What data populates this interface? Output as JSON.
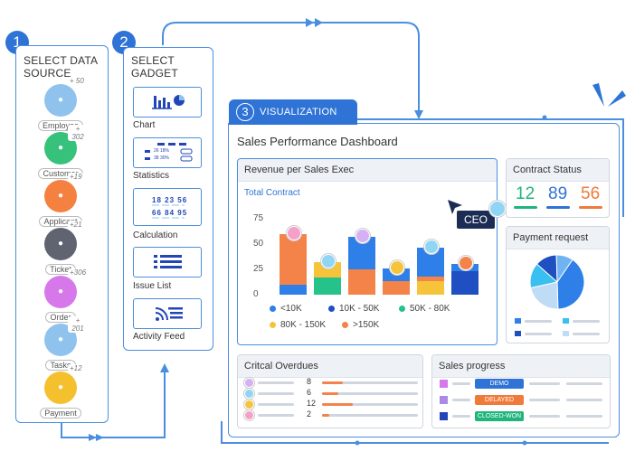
{
  "steps": {
    "s1": {
      "num": "1",
      "title_line1": "SELECT DATA",
      "title_line2": "SOURCE"
    },
    "s2": {
      "num": "2",
      "title_line1": "SELECT",
      "title_line2": "GADGET"
    },
    "s3": {
      "num": "3",
      "title": "VISUALIZATION"
    }
  },
  "sources": [
    {
      "label": "Employee",
      "count": "+ 50",
      "color": "#8fc3ee",
      "icon": "employee-icon"
    },
    {
      "label": "Customer",
      "count": "+ 302",
      "color": "#36c27b",
      "icon": "customer-icon"
    },
    {
      "label": "Applicant",
      "count": "+19",
      "color": "#f4813f",
      "icon": "applicant-icon"
    },
    {
      "label": "Ticket",
      "count": "+21",
      "color": "#5f6470",
      "icon": "ticket-icon"
    },
    {
      "label": "Order",
      "count": "+306",
      "color": "#d678ea",
      "icon": "order-icon"
    },
    {
      "label": "Tasks",
      "count": "+ 201",
      "color": "#8fc3ee",
      "icon": "tasks-icon"
    },
    {
      "label": "Payment",
      "count": "+12",
      "color": "#f5c02e",
      "icon": "payment-icon"
    }
  ],
  "gadgets": [
    {
      "label": "Chart",
      "icon": "chart-icon"
    },
    {
      "label": "Statistics",
      "icon": "statistics-icon",
      "mini1": "26  18%",
      "mini2": "38  30%"
    },
    {
      "label": "Calculation",
      "icon": "calculation-icon",
      "nums1": "18  23  56",
      "nums2": "66  84  95"
    },
    {
      "label": "Issue List",
      "icon": "issue-list-icon"
    },
    {
      "label": "Activity Feed",
      "icon": "activity-feed-icon"
    }
  ],
  "dashboard": {
    "title": "Sales Performance Dashboard",
    "ceo_label": "CEO",
    "revenue": {
      "title": "Revenue per Sales Exec",
      "subtitle": "Total Contract",
      "legend": [
        "<10K",
        "10K - 50K",
        "50K - 80K",
        "80K - 150K",
        ">150K"
      ]
    },
    "contract_status": {
      "title": "Contract Status",
      "values": [
        "12",
        "89",
        "56"
      ],
      "colors": [
        "#1fb57d",
        "#2f73d6",
        "#f07a3a"
      ]
    },
    "payment_request": {
      "title": "Payment request"
    },
    "overdues": {
      "title": "Critcal Overdues",
      "rows": [
        {
          "n": "8",
          "fill": 0.22
        },
        {
          "n": "6",
          "fill": 0.17
        },
        {
          "n": "12",
          "fill": 0.32
        },
        {
          "n": "2",
          "fill": 0.08
        }
      ]
    },
    "sales_progress": {
      "title": "Sales progress",
      "rows": [
        {
          "tag": "DEMO",
          "color": "#2f73d6",
          "sq": "#d678ea"
        },
        {
          "tag": "DELAYED",
          "color": "#f07a3a",
          "sq": "#a98be6"
        },
        {
          "tag": "CLOSED-WON",
          "color": "#1fb57d",
          "sq": "#2346b6"
        }
      ]
    }
  },
  "chart_data": [
    {
      "type": "bar",
      "title": "Revenue per Sales Exec",
      "subtitle": "Total Contract",
      "stacked": true,
      "categories": [
        "",
        "",
        "",
        "",
        "",
        ""
      ],
      "series": [
        {
          "name": "<10K",
          "color": "#2f7fe8",
          "values": [
            10,
            0,
            0,
            0,
            0,
            0
          ]
        },
        {
          "name": "10K - 50K",
          "color": "#1f4fc0",
          "values": [
            0,
            0,
            0,
            0,
            0,
            23
          ]
        },
        {
          "name": "50K - 80K",
          "color": "#25c28a",
          "values": [
            0,
            17,
            0,
            0,
            0,
            0
          ]
        },
        {
          "name": "80K - 150K",
          "color": "#f5c43a",
          "values": [
            0,
            15,
            0,
            0,
            13,
            0
          ]
        },
        {
          "name": ">150K",
          "color": "#f4834a",
          "values": [
            50,
            0,
            25,
            13,
            0,
            0
          ]
        }
      ],
      "extra_segments": [
        {
          "bar": 2,
          "name": "<10K",
          "value": 32
        },
        {
          "bar": 3,
          "name": "<10K",
          "value": 13
        },
        {
          "bar": 4,
          "name": ">150K",
          "value": 5
        },
        {
          "bar": 4,
          "name": "<10K",
          "value": 28
        },
        {
          "bar": 5,
          "name": "<10K",
          "value": 7
        },
        {
          "bar": 1,
          "name": "<10K",
          "value": 0
        }
      ],
      "ylim": [
        0,
        75
      ],
      "yticks": [
        "0",
        "25",
        "50",
        "75"
      ],
      "legend_position": "bottom"
    },
    {
      "type": "pie",
      "title": "Payment request",
      "values": [
        40,
        22,
        15,
        13,
        10
      ],
      "colors": [
        "#2f7fe8",
        "#bfdcf6",
        "#39c0f0",
        "#1f4fc0",
        "#6fb3f2"
      ]
    }
  ]
}
